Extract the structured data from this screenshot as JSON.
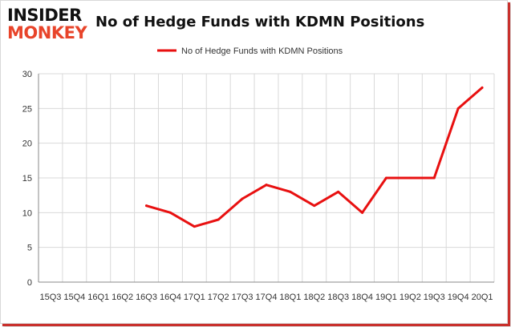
{
  "logo": {
    "line1": "INSIDER",
    "line2": "MONKEY"
  },
  "chart_data": {
    "type": "line",
    "title": "No of Hedge Funds with KDMN Positions",
    "xlabel": "",
    "ylabel": "",
    "categories": [
      "15Q3",
      "15Q4",
      "16Q1",
      "16Q2",
      "16Q3",
      "16Q4",
      "17Q1",
      "17Q2",
      "17Q3",
      "17Q4",
      "18Q1",
      "18Q2",
      "18Q3",
      "18Q4",
      "19Q1",
      "19Q2",
      "19Q3",
      "19Q4",
      "20Q1"
    ],
    "series": [
      {
        "name": "No of Hedge Funds with KDMN Positions",
        "color": "#e81010",
        "values": [
          null,
          null,
          null,
          null,
          11,
          10,
          8,
          9,
          12,
          14,
          13,
          11,
          13,
          10,
          15,
          15,
          15,
          25,
          28
        ]
      }
    ],
    "ylim": [
      0,
      30
    ],
    "yticks": [
      0,
      5,
      10,
      15,
      20,
      25,
      30
    ],
    "grid": true,
    "legend": "top-center"
  }
}
